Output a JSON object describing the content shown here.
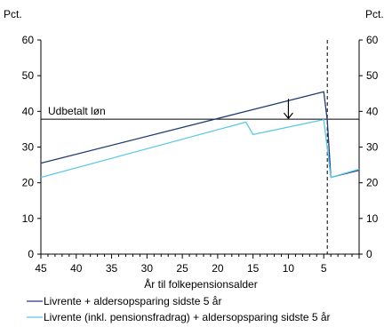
{
  "chart_data": {
    "type": "line",
    "ylabel_left": "Pct.",
    "ylabel_right": "Pct.",
    "xlabel": "År til folkepensionsalder",
    "xlim": [
      45,
      0
    ],
    "ylim": [
      0,
      60
    ],
    "x_ticks": [
      45,
      40,
      35,
      30,
      25,
      20,
      15,
      10,
      5
    ],
    "y_ticks": [
      0,
      10,
      20,
      30,
      40,
      50,
      60
    ],
    "grid": false,
    "legend_position": "bottom",
    "reference_line": {
      "label": "Udbetalt løn",
      "y": 37.8
    },
    "vertical_marker_x": 4.5,
    "arrow": {
      "x": 10,
      "from_y": 43.5,
      "to_y": 37.8
    },
    "series": [
      {
        "name": "Livrente + aldersopsparing sidste 5 år",
        "color": "#1f3b73",
        "points": [
          [
            45,
            25.5
          ],
          [
            5,
            45.5
          ],
          [
            4.5,
            37.5
          ],
          [
            4,
            21.5
          ],
          [
            0,
            23.5
          ]
        ]
      },
      {
        "name": "Livrente (inkl. pensionsfradrag) + aldersopsparing sidste 5 år",
        "color": "#5bc8ea",
        "points": [
          [
            45,
            21.5
          ],
          [
            16,
            37.0
          ],
          [
            15,
            33.5
          ],
          [
            5,
            37.7
          ],
          [
            4,
            21.5
          ],
          [
            0,
            23.8
          ]
        ]
      }
    ]
  }
}
